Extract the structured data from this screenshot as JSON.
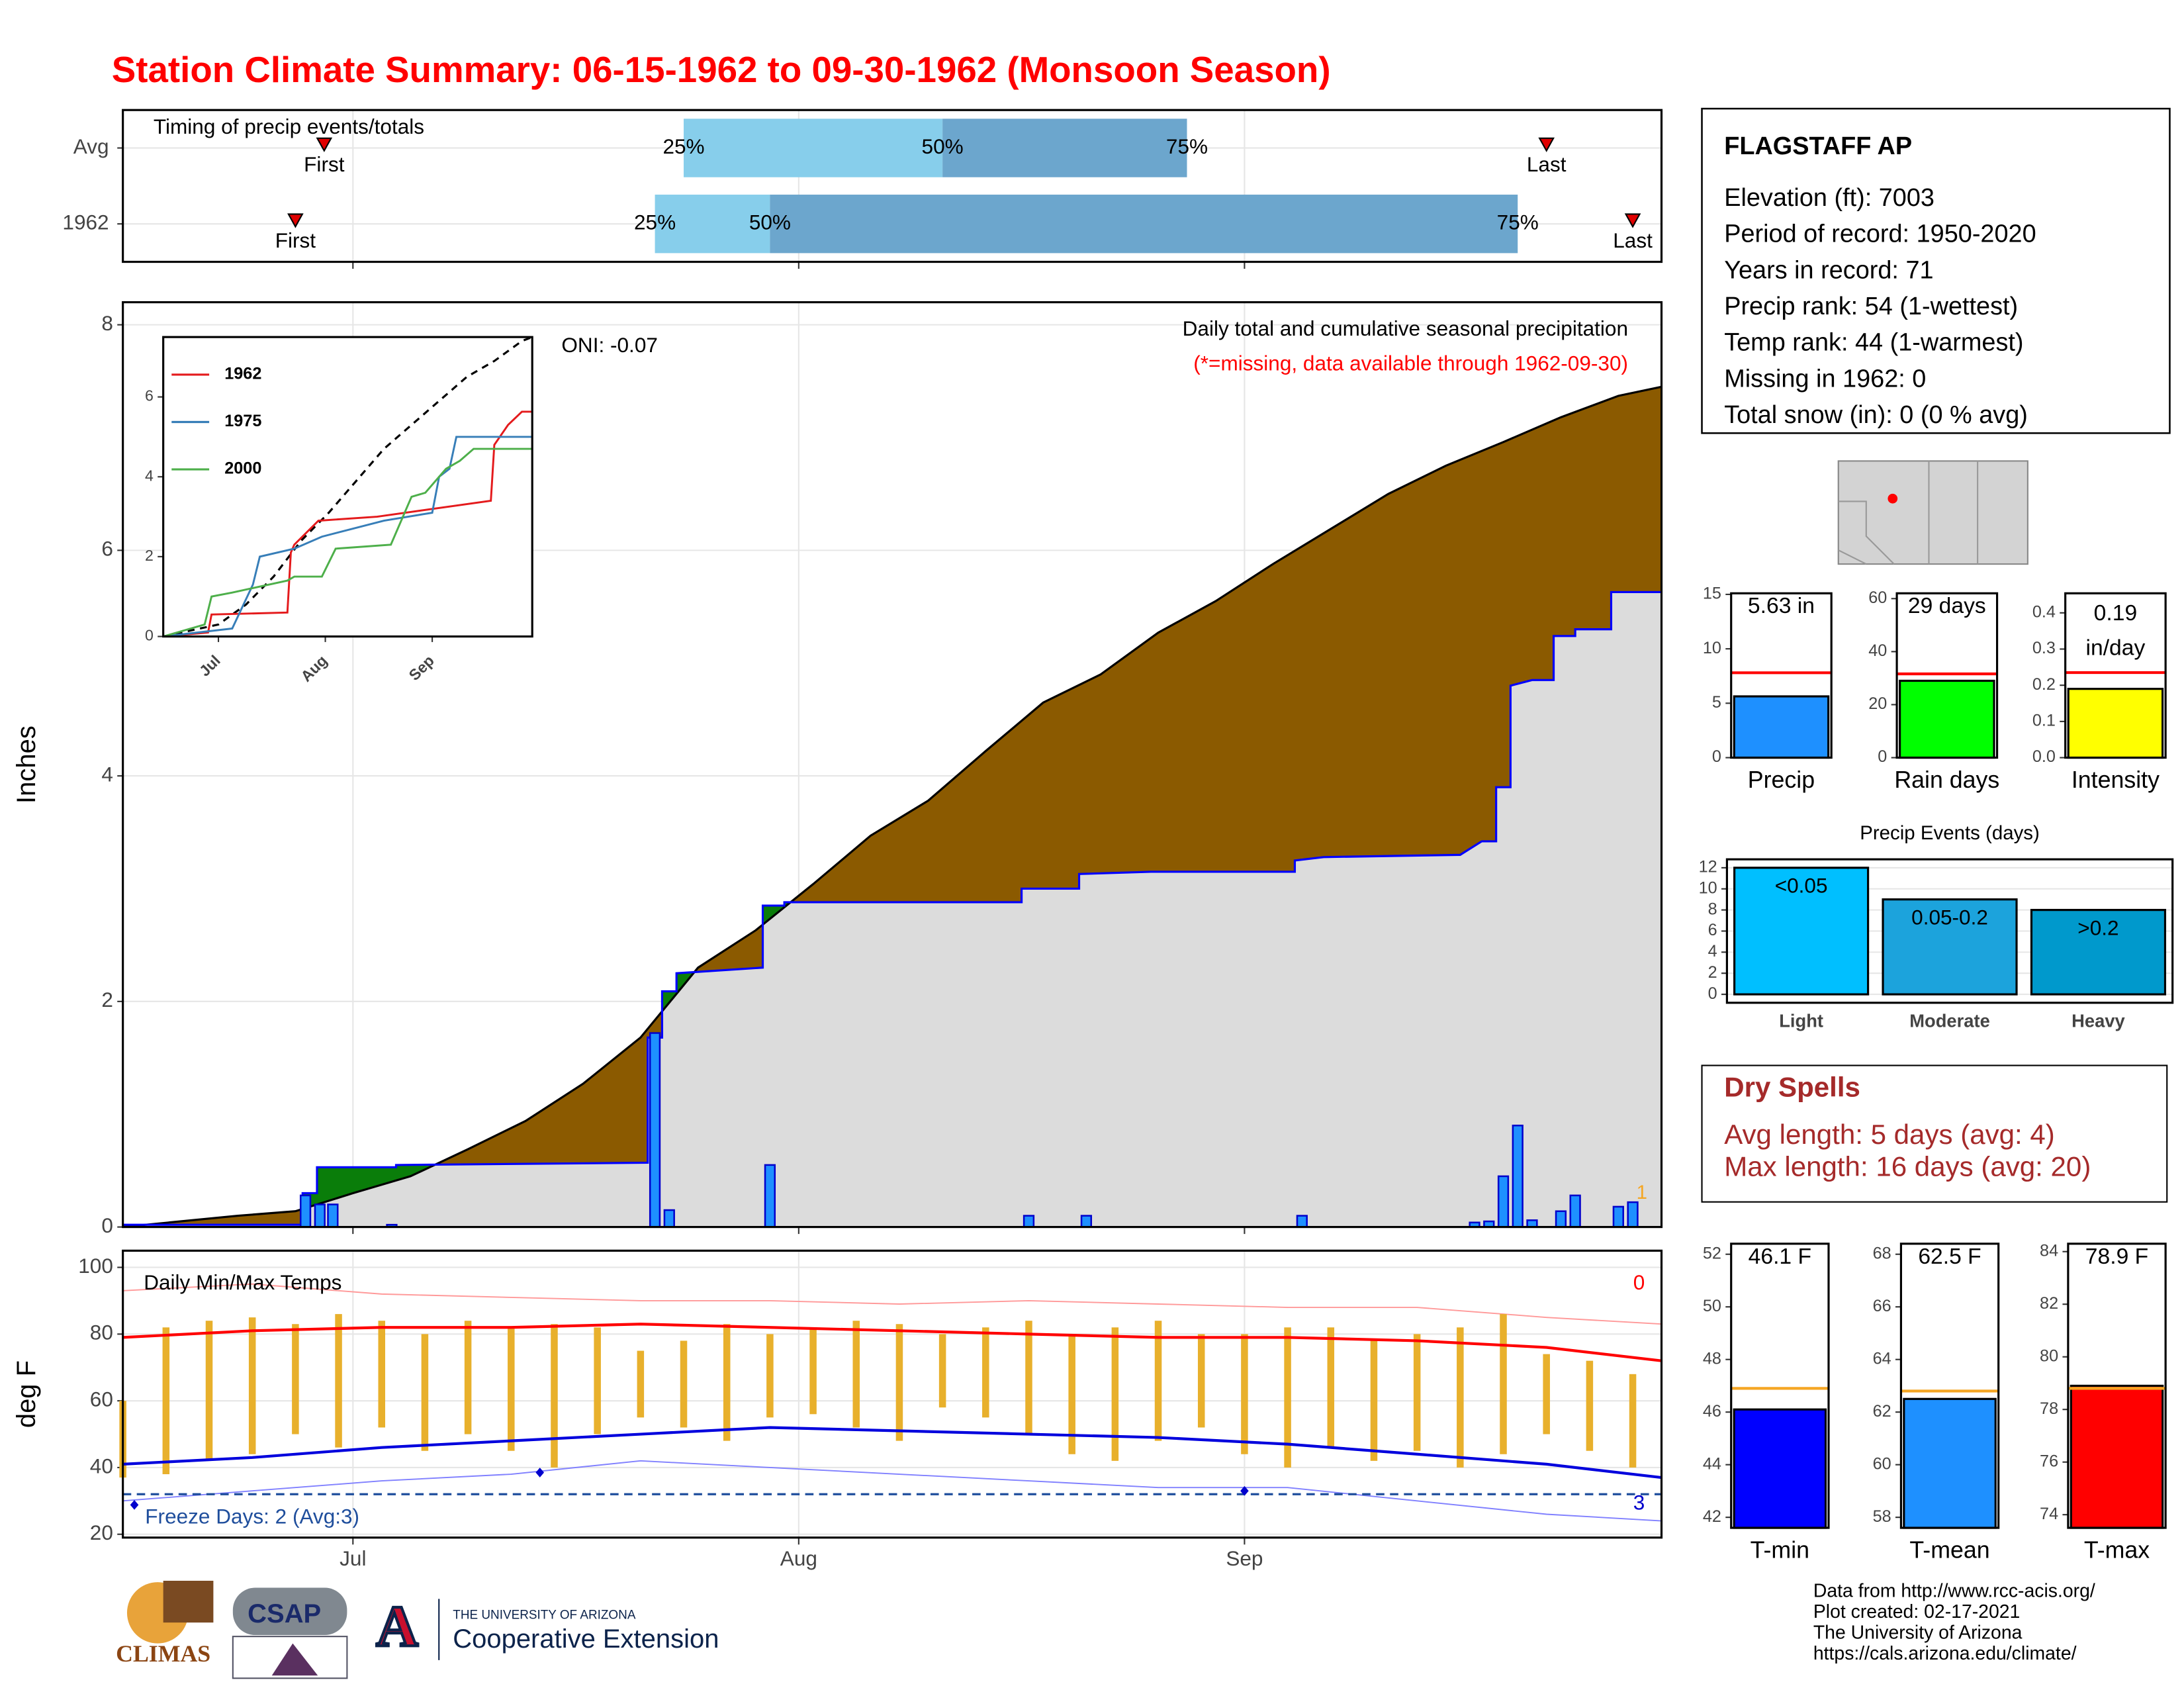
{
  "page_title": "Station Climate Summary: 06-15-1962 to 09-30-1962 (Monsoon Season)",
  "station": {
    "name": "FLAGSTAFF AP",
    "lines": [
      "Elevation (ft): 7003",
      "Period of record: 1950-2020",
      "Years in record: 71",
      "Precip rank: 54 (1-wettest)",
      "Temp rank: 44 (1-warmest)",
      "Missing in 1962: 0",
      "Total snow (in): 0 (0 % avg)"
    ]
  },
  "dry_spells": {
    "title": "Dry Spells",
    "lines": [
      "Avg length: 5 days (avg: 4)",
      "Max length: 16 days (avg: 20)"
    ]
  },
  "footer": {
    "lines": [
      "Data from http://www.rcc-acis.org/",
      "Plot created: 02-17-2021",
      "The University of Arizona",
      "https://cals.arizona.edu/climate/"
    ],
    "logos": [
      "CLIMAS",
      "CSAP",
      "THE UNIVERSITY OF ARIZONA",
      "Cooperative Extension"
    ]
  },
  "chart_data": [
    {
      "type": "timeline",
      "title": "Timing of precip events/totals",
      "categories": [
        "Avg",
        "1962"
      ],
      "xlim": [
        0,
        107
      ],
      "quartiles": [
        {
          "name": "25%",
          "values": [
            39,
            37
          ]
        },
        {
          "name": "50%",
          "values": [
            57,
            45
          ]
        },
        {
          "name": "75%",
          "values": [
            74,
            97
          ]
        }
      ],
      "markers": [
        {
          "name": "First",
          "values": [
            14,
            12
          ]
        },
        {
          "name": "Last",
          "values": [
            99,
            105
          ]
        }
      ],
      "colors": [
        "#87ceeb",
        "#6ca6cd"
      ],
      "marker_color": "#e00000"
    },
    {
      "type": "area",
      "title": "Daily total and cumulative seasonal precipitation",
      "subtitle": "(*=missing, data available through 1962-09-30)",
      "annotation": "ONI: -0.07",
      "corner_note": "1",
      "y_label": "Inches",
      "xlim": [
        0,
        107
      ],
      "ylim": [
        0,
        8.2
      ],
      "yticks": [
        0,
        2,
        4,
        6,
        8
      ],
      "grid": true,
      "series": [
        {
          "color": "#8b5a00",
          "line_color": "#000000",
          "x": [
            0,
            8,
            12,
            16,
            20,
            24,
            28,
            32,
            36,
            40,
            44,
            48,
            52,
            56,
            60,
            64,
            68,
            72,
            76,
            80,
            84,
            88,
            92,
            96,
            100,
            104,
            107
          ],
          "values": [
            0,
            0.1,
            0.14,
            0.3,
            0.45,
            0.69,
            0.94,
            1.27,
            1.68,
            2.3,
            2.63,
            3.04,
            3.47,
            3.78,
            4.22,
            4.65,
            4.9,
            5.27,
            5.55,
            5.88,
            6.19,
            6.5,
            6.75,
            6.96,
            7.18,
            7.37,
            7.45
          ]
        },
        {
          "color": "#0000ff",
          "above_color": "#0a7d0a",
          "below_color": "#dcdcdc",
          "x": [
            0,
            12.5,
            12.5,
            13.5,
            13.5,
            19,
            19,
            36.5,
            36.5,
            37.5,
            37.5,
            38.5,
            38.5,
            44.5,
            44.5,
            46,
            46,
            62.5,
            62.5,
            66.5,
            66.5,
            71.5,
            81.5,
            81.5,
            83.5,
            93,
            94.5,
            95.5,
            95.5,
            96.5,
            96.5,
            98,
            99.5,
            99.5,
            101,
            101,
            103.5,
            103.5,
            107
          ],
          "values": [
            0.02,
            0.02,
            0.3,
            0.3,
            0.53,
            0.53,
            0.55,
            0.57,
            1.68,
            1.68,
            2.09,
            2.09,
            2.25,
            2.3,
            2.85,
            2.85,
            2.88,
            2.88,
            3.0,
            3.0,
            3.13,
            3.15,
            3.15,
            3.25,
            3.28,
            3.3,
            3.42,
            3.42,
            3.9,
            3.9,
            4.8,
            4.85,
            4.85,
            5.24,
            5.24,
            5.3,
            5.3,
            5.63,
            5.63
          ]
        }
      ],
      "bars": {
        "color": "#1e90ff",
        "edge_color": "#0000cc",
        "x": [
          12.7,
          13.7,
          14.6,
          18.7,
          37,
          38,
          45,
          63,
          67,
          82,
          94,
          95,
          96,
          97,
          98,
          100,
          101,
          104,
          105
        ],
        "values": [
          0.28,
          0.2,
          0.2,
          0.02,
          1.72,
          0.15,
          0.55,
          0.1,
          0.1,
          0.1,
          0.04,
          0.05,
          0.45,
          0.9,
          0.06,
          0.14,
          0.28,
          0.18,
          0.22
        ]
      }
    },
    {
      "type": "line",
      "xlim": [
        0,
        107
      ],
      "ylim": [
        0,
        7.5
      ],
      "yticks": [
        0,
        2,
        4,
        6
      ],
      "xticks": [
        {
          "value": 16,
          "label": "Jul"
        },
        {
          "value": 47,
          "label": "Aug"
        },
        {
          "value": 78,
          "label": "Sep"
        }
      ],
      "series": [
        {
          "name": "1962",
          "color": "#e41a1c",
          "x": [
            0,
            13,
            14,
            36,
            37,
            38,
            45,
            62,
            95,
            96,
            100,
            104,
            107
          ],
          "values": [
            0,
            0.1,
            0.55,
            0.6,
            2.1,
            2.3,
            2.9,
            3.0,
            3.4,
            4.8,
            5.3,
            5.63,
            5.63
          ]
        },
        {
          "name": "1975",
          "color": "#377eb8",
          "x": [
            0,
            20,
            26,
            28,
            38,
            46,
            64,
            78,
            80,
            83,
            85,
            107
          ],
          "values": [
            0,
            0.2,
            1.3,
            2.0,
            2.2,
            2.5,
            2.9,
            3.1,
            4.0,
            4.2,
            5.0,
            5.0
          ]
        },
        {
          "name": "2000",
          "color": "#4daf4a",
          "x": [
            0,
            12,
            14,
            20,
            36,
            38,
            46,
            50,
            66,
            72,
            76,
            82,
            86,
            90,
            107
          ],
          "values": [
            0,
            0.3,
            1.0,
            1.1,
            1.4,
            1.5,
            1.5,
            2.2,
            2.3,
            3.5,
            3.6,
            4.2,
            4.4,
            4.7,
            4.7
          ]
        }
      ],
      "average": {
        "color": "#000000",
        "x": [
          0,
          16,
          24,
          32,
          40,
          48,
          56,
          64,
          72,
          80,
          88,
          96,
          104,
          107
        ],
        "values": [
          0,
          0.3,
          0.8,
          1.5,
          2.4,
          3.1,
          3.9,
          4.7,
          5.3,
          5.9,
          6.5,
          6.9,
          7.4,
          7.5
        ]
      }
    },
    {
      "type": "range",
      "title": "Daily Min/Max Temps",
      "y_label": "deg F",
      "annotation": "Freeze Days: 2 (Avg:3)",
      "record_high_days": 0,
      "record_low_days": 3,
      "xlim": [
        0,
        107
      ],
      "ylim": [
        19,
        105
      ],
      "yticks": [
        20,
        40,
        60,
        80,
        100
      ],
      "xticks": [
        {
          "value": 16,
          "label": "Jul"
        },
        {
          "value": 47,
          "label": "Aug"
        },
        {
          "value": 78,
          "label": "Sep"
        }
      ],
      "grid": true,
      "bars": {
        "color": "#e8b02c",
        "x": [
          0,
          3,
          6,
          9,
          12,
          15,
          18,
          21,
          24,
          27,
          30,
          33,
          36,
          39,
          42,
          45,
          48,
          51,
          54,
          57,
          60,
          63,
          66,
          69,
          72,
          75,
          78,
          81,
          84,
          87,
          90,
          93,
          96,
          99,
          102,
          105
        ],
        "low": [
          37,
          38,
          42,
          44,
          50,
          46,
          52,
          45,
          50,
          45,
          40,
          50,
          55,
          52,
          48,
          55,
          56,
          52,
          48,
          58,
          55,
          50,
          44,
          42,
          48,
          52,
          44,
          40,
          46,
          42,
          45,
          40,
          44,
          50,
          45,
          40
        ],
        "high": [
          60,
          82,
          84,
          85,
          83,
          86,
          84,
          80,
          84,
          82,
          83,
          82,
          75,
          78,
          83,
          80,
          82,
          84,
          83,
          80,
          82,
          84,
          80,
          82,
          84,
          80,
          80,
          82,
          82,
          78,
          80,
          82,
          86,
          74,
          72,
          68
        ]
      },
      "lines": [
        {
          "color": "#ff9999",
          "width": 0.9,
          "x": [
            0,
            9,
            18,
            27,
            36,
            45,
            54,
            63,
            72,
            81,
            90,
            99,
            107
          ],
          "values": [
            93,
            95,
            92,
            91,
            90,
            90,
            89,
            90,
            89,
            88,
            88,
            85,
            83
          ]
        },
        {
          "color": "#8080ff",
          "width": 0.9,
          "x": [
            0,
            9,
            18,
            27,
            36,
            45,
            54,
            63,
            72,
            81,
            90,
            99,
            107
          ],
          "values": [
            30,
            33,
            36,
            38,
            42,
            40,
            38,
            36,
            34,
            34,
            30,
            26,
            24
          ]
        },
        {
          "color": "#ff0000",
          "width": 2,
          "x": [
            0,
            9,
            18,
            27,
            36,
            45,
            54,
            63,
            72,
            81,
            90,
            99,
            107
          ],
          "values": [
            79,
            81,
            82,
            82,
            83,
            82,
            81,
            80,
            79,
            79,
            78,
            76,
            72
          ]
        },
        {
          "color": "#0000dd",
          "width": 2,
          "x": [
            0,
            9,
            18,
            27,
            36,
            45,
            54,
            63,
            72,
            81,
            90,
            99,
            107
          ],
          "values": [
            41,
            43,
            46,
            48,
            50,
            52,
            51,
            50,
            49,
            47,
            44,
            41,
            37
          ]
        }
      ],
      "freeze_line": 32,
      "freeze_color": "#1f4e9c",
      "record_high_color": "#ff0000",
      "record_low_color": "#0000cc",
      "markers": {
        "color": "#0000cd",
        "x": [
          0.8,
          29,
          78
        ],
        "values": [
          28.8,
          38.5,
          33
        ]
      }
    },
    {
      "type": "bar",
      "categories": [
        "Precip"
      ],
      "values": [
        5.63
      ],
      "value_labels": [
        "5.63 in"
      ],
      "color": "#1e90ff",
      "reference": 7.8,
      "reference_color": "#ff0000",
      "ylim": [
        0,
        15.1
      ],
      "yticks": [
        0,
        5,
        10,
        15
      ]
    },
    {
      "type": "bar",
      "categories": [
        "Rain days"
      ],
      "values": [
        29
      ],
      "value_labels": [
        "29 days"
      ],
      "color": "#00ff00",
      "reference": 31.6,
      "reference_color": "#ff0000",
      "ylim": [
        0,
        62
      ],
      "yticks": [
        0,
        20,
        40,
        60
      ]
    },
    {
      "type": "bar",
      "categories": [
        "Intensity"
      ],
      "values": [
        0.19
      ],
      "value_labels": [
        "0.19 in/day"
      ],
      "color": "#ffff00",
      "reference": 0.235,
      "reference_color": "#ff0000",
      "ylim": [
        0,
        0.454
      ],
      "yticks": [
        {
          "value": 0,
          "label": "0.0"
        },
        0.1,
        0.2,
        0.3,
        0.4
      ]
    },
    {
      "type": "bar",
      "title": "Precip Events (days)",
      "categories": [
        "Light",
        "Moderate",
        "Heavy"
      ],
      "values": [
        12,
        9,
        8
      ],
      "bin_labels": [
        "<0.05",
        "0.05-0.2",
        ">0.2"
      ],
      "colors": [
        "#00bfff",
        "#1ca3dc",
        "#0099cc"
      ],
      "ylim": [
        -0.8,
        12.8
      ],
      "yticks": [
        0,
        2,
        4,
        6,
        8,
        10,
        12
      ],
      "grid": true
    },
    {
      "type": "bar",
      "categories": [
        "T-min"
      ],
      "values": [
        46.1
      ],
      "value_labels": [
        "46.1 F"
      ],
      "color": "#0000ff",
      "reference": 46.9,
      "reference_color": "#f5a623",
      "ylim": [
        41.6,
        52.4
      ],
      "yticks": [
        42,
        44,
        46,
        48,
        50,
        52
      ]
    },
    {
      "type": "bar",
      "categories": [
        "T-mean"
      ],
      "values": [
        62.5
      ],
      "value_labels": [
        "62.5 F"
      ],
      "color": "#1e90ff",
      "reference": 62.8,
      "reference_color": "#f5a623",
      "ylim": [
        57.6,
        68.4
      ],
      "yticks": [
        58,
        60,
        62,
        64,
        66,
        68
      ]
    },
    {
      "type": "bar",
      "categories": [
        "T-max"
      ],
      "values": [
        78.9
      ],
      "value_labels": [
        "78.9 F"
      ],
      "color": "#ff0000",
      "reference": 78.8,
      "reference_color": "#f5a623",
      "ylim": [
        73.5,
        84.3
      ],
      "yticks": [
        74,
        76,
        78,
        80,
        82,
        84
      ]
    }
  ]
}
